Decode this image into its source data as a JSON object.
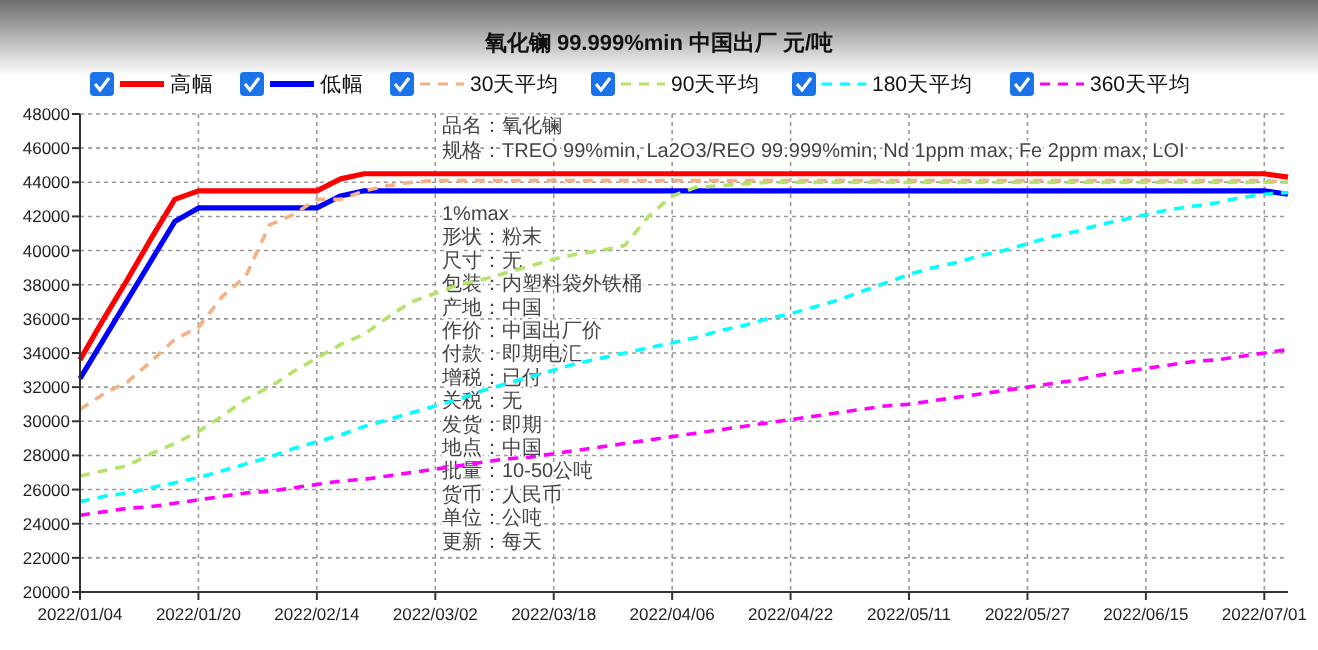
{
  "chart_data": {
    "type": "line",
    "title": "氧化镧 99.999%min 中国出厂 元/吨",
    "categories": [
      "2022/01/04",
      null,
      null,
      null,
      null,
      "2022/01/20",
      null,
      null,
      null,
      null,
      "2022/02/14",
      null,
      null,
      null,
      null,
      "2022/03/02",
      null,
      null,
      null,
      null,
      "2022/03/18",
      null,
      null,
      null,
      null,
      "2022/04/06",
      null,
      null,
      null,
      null,
      "2022/04/22",
      null,
      null,
      null,
      null,
      "2022/05/11",
      null,
      null,
      null,
      null,
      "2022/05/27",
      null,
      null,
      null,
      null,
      "2022/06/15",
      null,
      null,
      null,
      null,
      "2022/07/01",
      null
    ],
    "ylim": [
      20000,
      48000
    ],
    "yticks": [
      20000,
      22000,
      24000,
      26000,
      28000,
      30000,
      32000,
      34000,
      36000,
      38000,
      40000,
      42000,
      44000,
      46000,
      48000
    ],
    "grid": true,
    "legend": "top",
    "marker": "none",
    "series": [
      {
        "name": "高幅",
        "color": "#ff0000",
        "line_style": "solid",
        "values": [
          33600,
          36000,
          38300,
          40700,
          43000,
          43500,
          43500,
          43500,
          43500,
          43500,
          43500,
          44200,
          44500,
          44500,
          44500,
          44500,
          44500,
          44500,
          44500,
          44500,
          44500,
          44500,
          44500,
          44500,
          44500,
          44500,
          44500,
          44500,
          44500,
          44500,
          44500,
          44500,
          44500,
          44500,
          44500,
          44500,
          44500,
          44500,
          44500,
          44500,
          44500,
          44500,
          44500,
          44500,
          44500,
          44500,
          44500,
          44500,
          44500,
          44500,
          44500,
          44300
        ]
      },
      {
        "name": "低幅",
        "color": "#0000ff",
        "line_style": "solid",
        "values": [
          32500,
          34800,
          37100,
          39400,
          41700,
          42500,
          42500,
          42500,
          42500,
          42500,
          42500,
          43200,
          43500,
          43500,
          43500,
          43500,
          43500,
          43500,
          43500,
          43500,
          43500,
          43500,
          43500,
          43500,
          43500,
          43500,
          43500,
          43500,
          43500,
          43500,
          43500,
          43500,
          43500,
          43500,
          43500,
          43500,
          43500,
          43500,
          43500,
          43500,
          43500,
          43500,
          43500,
          43500,
          43500,
          43500,
          43500,
          43500,
          43500,
          43500,
          43500,
          43300
        ]
      },
      {
        "name": "30天平均",
        "color": "#f4b183",
        "line_style": "dashed",
        "values": [
          30700,
          31600,
          32300,
          33500,
          34800,
          35500,
          37300,
          38500,
          41500,
          42100,
          43000,
          43000,
          43500,
          43800,
          44000,
          44100,
          44100,
          44100,
          44100,
          44100,
          44100,
          44100,
          44100,
          44100,
          44100,
          44100,
          44100,
          44100,
          44100,
          44100,
          44100,
          44100,
          44100,
          44100,
          44100,
          44100,
          44100,
          44100,
          44100,
          44100,
          44100,
          44100,
          44100,
          44100,
          44100,
          44100,
          44100,
          44100,
          44100,
          44100,
          44100,
          44000
        ]
      },
      {
        "name": "90天平均",
        "color": "#b4e36a",
        "line_style": "dashed",
        "values": [
          26800,
          27100,
          27400,
          28100,
          28700,
          29400,
          30300,
          31300,
          32000,
          32900,
          33700,
          34500,
          35100,
          36100,
          37000,
          37500,
          38000,
          38300,
          38700,
          39100,
          39500,
          39800,
          40000,
          40300,
          42000,
          43200,
          43700,
          43800,
          43900,
          44000,
          44000,
          44000,
          44000,
          44000,
          44000,
          44000,
          44000,
          44000,
          44000,
          44000,
          44000,
          44000,
          44000,
          44000,
          44000,
          44000,
          44000,
          44000,
          44000,
          44000,
          44000,
          44000
        ]
      },
      {
        "name": "180天平均",
        "color": "#00ffff",
        "line_style": "dashed",
        "values": [
          25300,
          25600,
          25800,
          26100,
          26400,
          26700,
          27100,
          27500,
          27900,
          28400,
          28800,
          29200,
          29700,
          30100,
          30500,
          30900,
          31300,
          31800,
          32200,
          32600,
          33000,
          33400,
          33700,
          34000,
          34300,
          34600,
          34900,
          35300,
          35600,
          36000,
          36300,
          36700,
          37100,
          37600,
          38100,
          38600,
          39000,
          39300,
          39700,
          40000,
          40400,
          40800,
          41100,
          41500,
          41800,
          42100,
          42400,
          42600,
          42800,
          43100,
          43300,
          43400
        ]
      },
      {
        "name": "360天平均",
        "color": "#ff00ff",
        "line_style": "dashed",
        "values": [
          24500,
          24700,
          24900,
          25000,
          25200,
          25400,
          25600,
          25800,
          25900,
          26100,
          26300,
          26500,
          26600,
          26800,
          27000,
          27200,
          27400,
          27600,
          27800,
          27900,
          28100,
          28300,
          28500,
          28700,
          28900,
          29100,
          29300,
          29500,
          29700,
          29900,
          30100,
          30300,
          30500,
          30700,
          30900,
          31000,
          31200,
          31400,
          31600,
          31800,
          32000,
          32200,
          32400,
          32700,
          32900,
          33100,
          33300,
          33500,
          33600,
          33800,
          34000,
          34200
        ]
      }
    ],
    "annotations": [
      "品名：氧化镧",
      "规格：TREO 99%min, La2O3/REO 99.999%min, Nd 1ppm max, Fe 2ppm max, LOI 1%max",
      "形状：粉末",
      "尺寸：无",
      "包装：内塑料袋外铁桶",
      "产地：中国",
      "作价：中国出厂价",
      "付款：即期电汇",
      "增税：已付",
      "关税：无",
      "发货：即期",
      "地点：中国",
      "批量：10-50公吨",
      "货币：人民币",
      "单位：公吨",
      "更新：每天"
    ]
  }
}
